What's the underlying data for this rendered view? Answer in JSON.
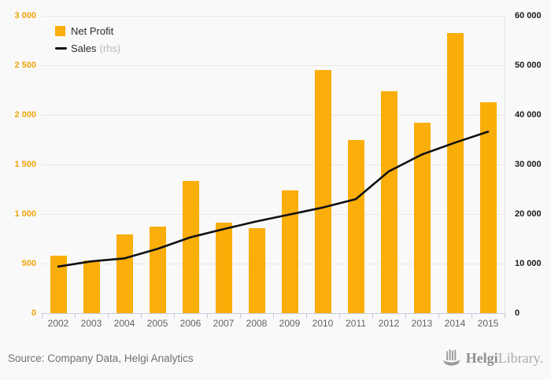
{
  "legend": {
    "net_profit_label": "Net Profit",
    "sales_label": "Sales",
    "sales_suffix": "(rhs)"
  },
  "footer": {
    "source": "Source: Company Data, Helgi Analytics",
    "logo_bold": "Helgi",
    "logo_light": "Library."
  },
  "colors": {
    "bar": "#FAAE09",
    "line": "#111111",
    "left_axis_label": "#F0A40A",
    "right_axis_label": "#1a1a1a",
    "x_axis_label": "#5f6368",
    "grid": "#e8e8e8",
    "axis": "#c3cddf",
    "background": "#f9f9f9"
  },
  "chart_data": {
    "type": "bar",
    "subtype": "bar-with-line-overlay",
    "categories": [
      "2002",
      "2003",
      "2004",
      "2005",
      "2006",
      "2007",
      "2008",
      "2009",
      "2010",
      "2011",
      "2012",
      "2013",
      "2014",
      "2015"
    ],
    "series": [
      {
        "name": "Net Profit",
        "type": "bar",
        "axis": "left",
        "values": [
          580,
          535,
          790,
          875,
          1330,
          910,
          855,
          1235,
          2450,
          1750,
          2240,
          1920,
          2825,
          2130
        ]
      },
      {
        "name": "Sales (rhs)",
        "type": "line",
        "axis": "right",
        "values": [
          9400,
          10450,
          11050,
          12950,
          15300,
          16950,
          18500,
          19900,
          21300,
          23000,
          28600,
          32000,
          34400,
          36600
        ]
      }
    ],
    "left_axis": {
      "min": 0,
      "max": 3000,
      "step": 500,
      "tick_labels": [
        "0",
        "500",
        "1 000",
        "1 500",
        "2 000",
        "2 500",
        "3 000"
      ]
    },
    "right_axis": {
      "min": 0,
      "max": 60000,
      "step": 10000,
      "tick_labels": [
        "0",
        "10 000",
        "20 000",
        "30 000",
        "40 000",
        "50 000",
        "60 000"
      ]
    },
    "title": "",
    "xlabel": "",
    "ylabel": "",
    "grid": true,
    "legend_position": "top-left"
  }
}
